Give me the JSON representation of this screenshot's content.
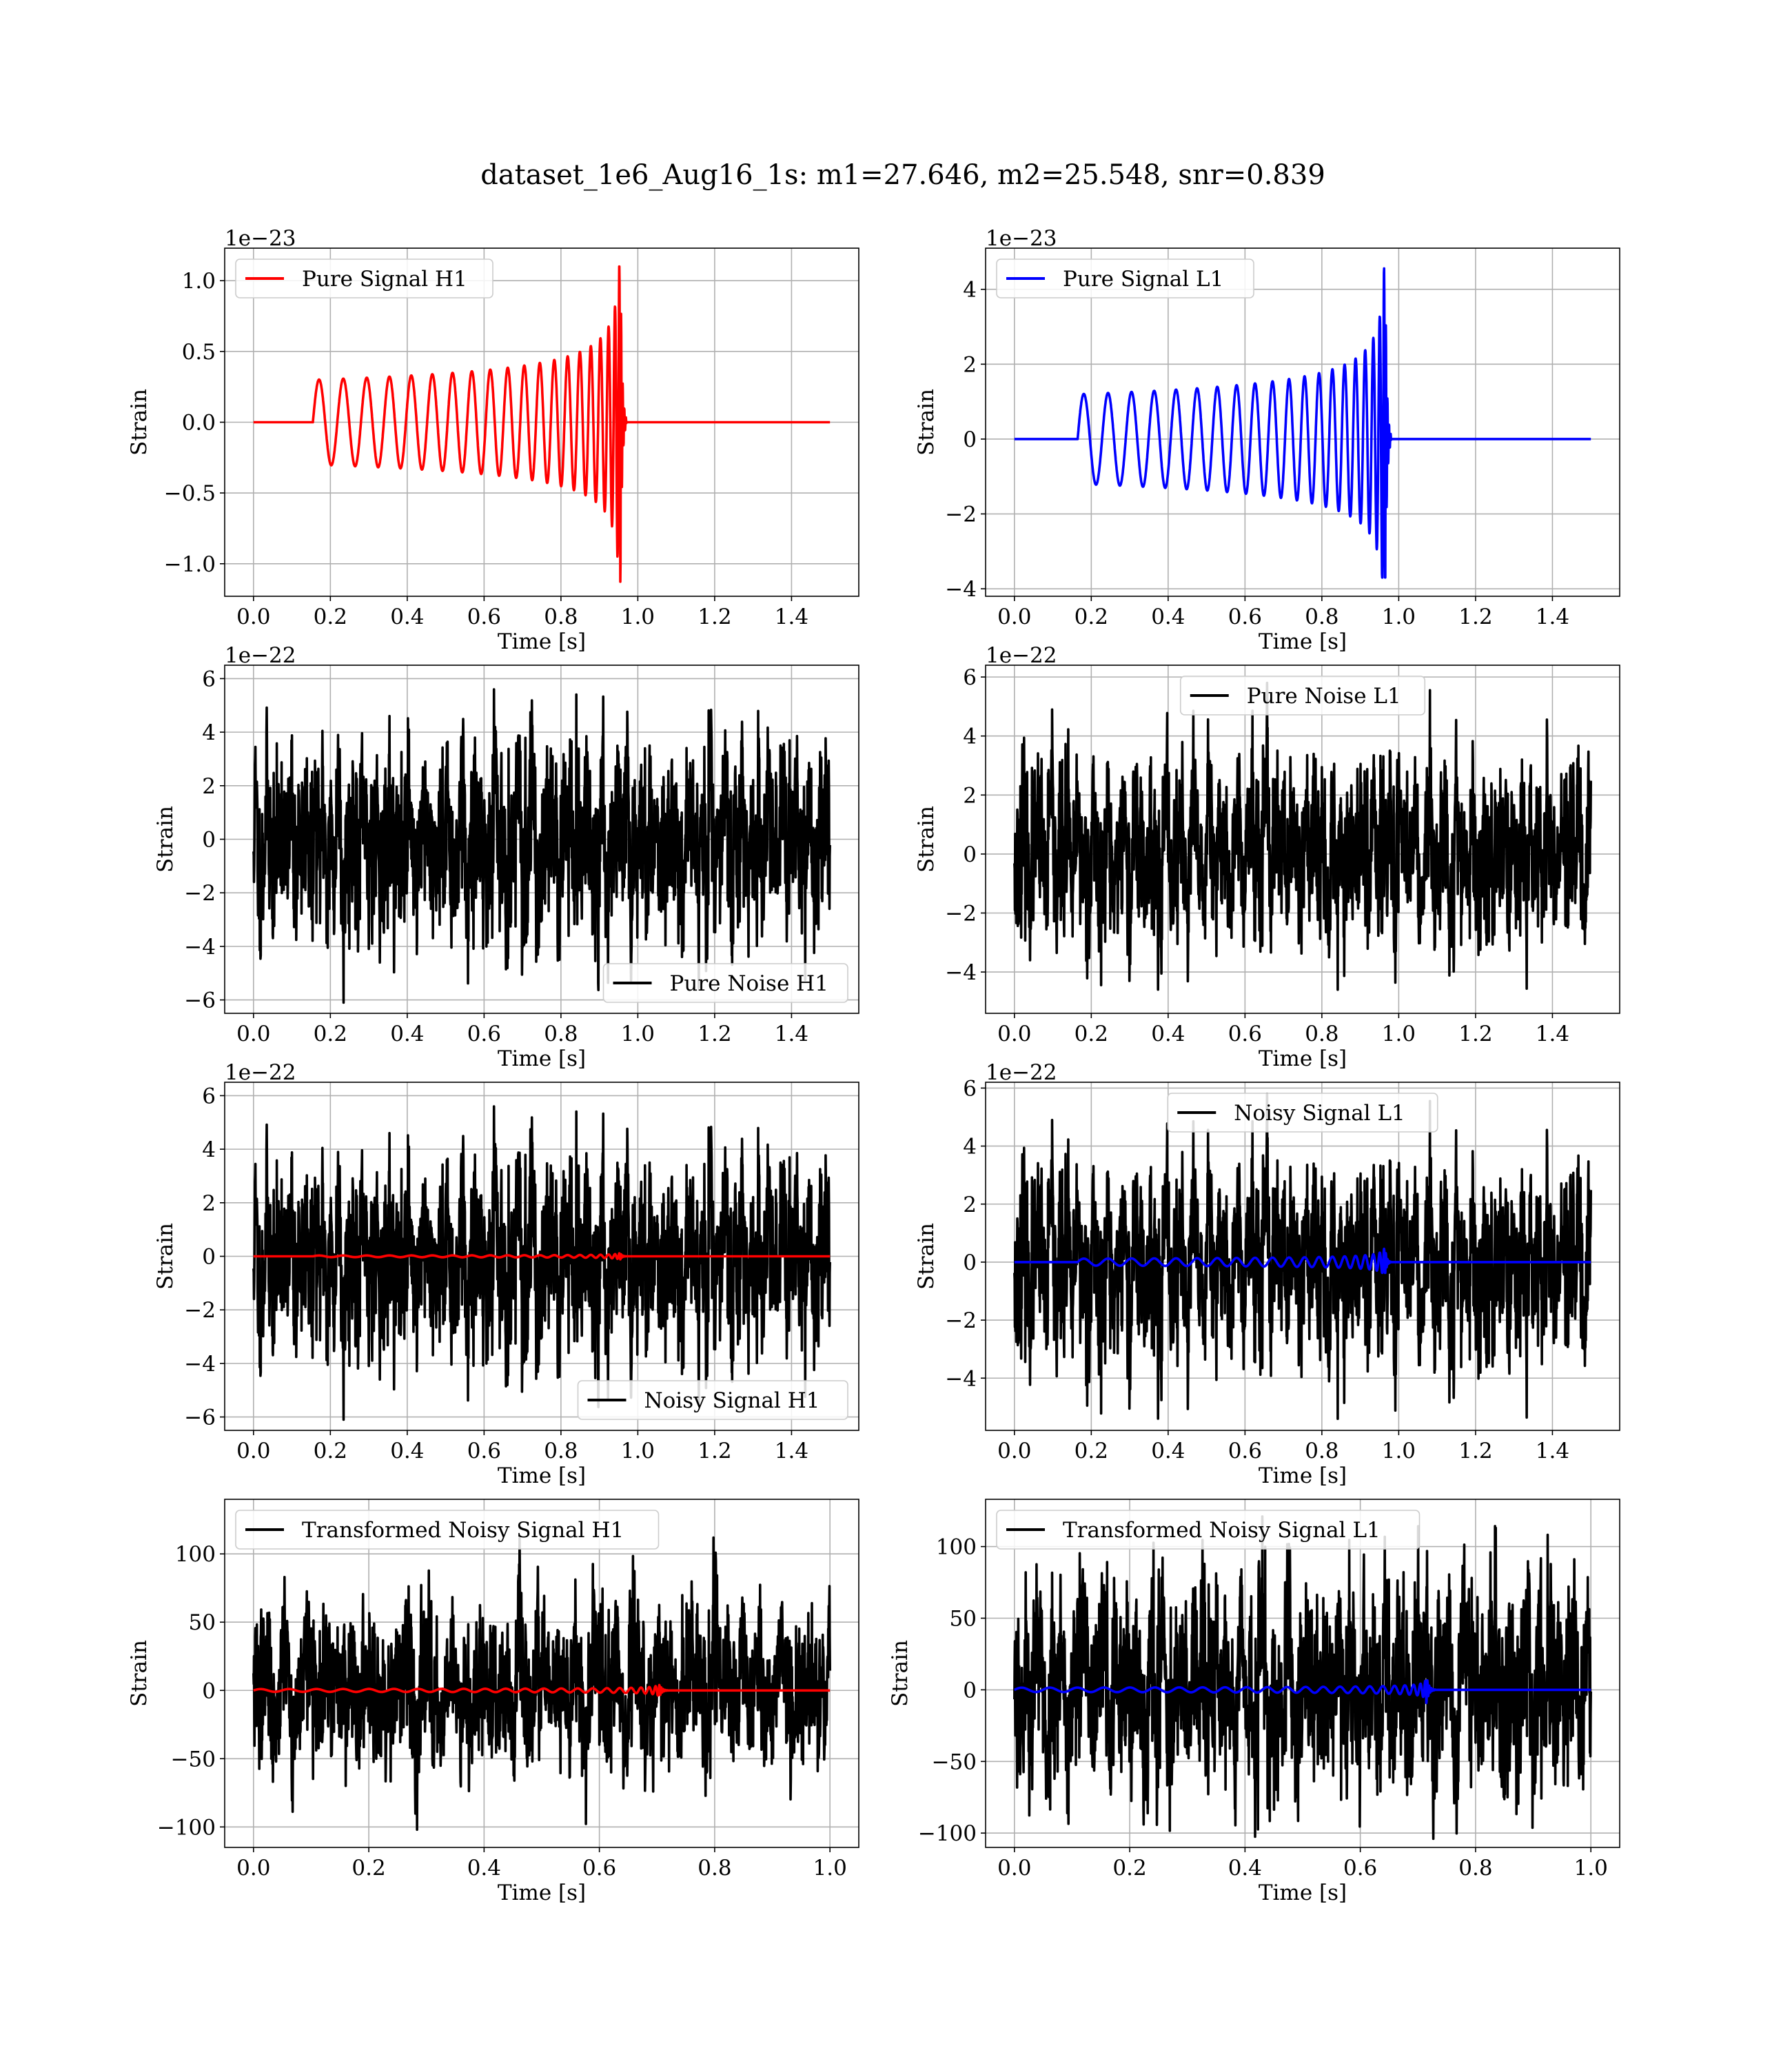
{
  "figure": {
    "title": "dataset_1e6_Aug16_1s: m1=27.646, m2=25.548, snr=0.839"
  },
  "chart_data": [
    {
      "id": "pure-signal-h1",
      "type": "line",
      "ylabel": "Strain",
      "xlabel": "Time [s]",
      "offset_text": "1e−23",
      "xlim": [
        -0.075,
        1.575
      ],
      "ylim": [
        -1.23,
        1.23
      ],
      "xticks": [
        0.0,
        0.2,
        0.4,
        0.6,
        0.8,
        1.0,
        1.2,
        1.4
      ],
      "xtick_labels": [
        "0.0",
        "0.2",
        "0.4",
        "0.6",
        "0.8",
        "1.0",
        "1.2",
        "1.4"
      ],
      "yticks": [
        -1.0,
        -0.5,
        0.0,
        0.5,
        1.0
      ],
      "ytick_labels": [
        "−1.0",
        "−0.5",
        "0.0",
        "0.5",
        "1.0"
      ],
      "grid": true,
      "legend_position": "upper left",
      "series": [
        {
          "name": "Pure Signal H1",
          "color": "#ff0000",
          "kind": "chirp",
          "x_range": [
            0.0,
            1.5
          ],
          "onset": 0.155,
          "merger": 0.955,
          "amp_start": 0.3,
          "amp_peak": 1.1,
          "amp_trough": -1.16,
          "f_start": 15.5
        }
      ]
    },
    {
      "id": "pure-signal-l1",
      "type": "line",
      "ylabel": "Strain",
      "xlabel": "Time [s]",
      "offset_text": "1e−23",
      "xlim": [
        -0.075,
        1.575
      ],
      "ylim": [
        -4.2,
        5.1
      ],
      "xticks": [
        0.0,
        0.2,
        0.4,
        0.6,
        0.8,
        1.0,
        1.2,
        1.4
      ],
      "xtick_labels": [
        "0.0",
        "0.2",
        "0.4",
        "0.6",
        "0.8",
        "1.0",
        "1.2",
        "1.4"
      ],
      "yticks": [
        -4,
        -2,
        0,
        2,
        4
      ],
      "ytick_labels": [
        "−4",
        "−2",
        "0",
        "2",
        "4"
      ],
      "grid": true,
      "legend_position": "upper left",
      "series": [
        {
          "name": "Pure Signal L1",
          "color": "#0000ff",
          "kind": "chirp",
          "x_range": [
            0.0,
            1.5
          ],
          "onset": 0.165,
          "merger": 0.965,
          "amp_start": 1.2,
          "amp_peak": 4.6,
          "amp_trough": -3.7,
          "f_start": 15.5
        }
      ]
    },
    {
      "id": "pure-noise-h1",
      "type": "line",
      "ylabel": "Strain",
      "xlabel": "Time [s]",
      "offset_text": "1e−22",
      "xlim": [
        -0.075,
        1.575
      ],
      "ylim": [
        -6.5,
        6.5
      ],
      "xticks": [
        0.0,
        0.2,
        0.4,
        0.6,
        0.8,
        1.0,
        1.2,
        1.4
      ],
      "xtick_labels": [
        "0.0",
        "0.2",
        "0.4",
        "0.6",
        "0.8",
        "1.0",
        "1.2",
        "1.4"
      ],
      "yticks": [
        -6,
        -4,
        -2,
        0,
        2,
        4,
        6
      ],
      "ytick_labels": [
        "−6",
        "−4",
        "−2",
        "0",
        "2",
        "4",
        "6"
      ],
      "grid": true,
      "legend_position": "lower right",
      "series": [
        {
          "name": "Pure Noise H1",
          "color": "#000000",
          "kind": "noise",
          "x_range": [
            0.0,
            1.5
          ],
          "amp": 2.0,
          "y_max": 5.6,
          "y_min": -6.1,
          "seed": 11
        }
      ]
    },
    {
      "id": "pure-noise-l1",
      "type": "line",
      "ylabel": "Strain",
      "xlabel": "Time [s]",
      "offset_text": "1e−22",
      "xlim": [
        -0.075,
        1.575
      ],
      "ylim": [
        -5.4,
        6.4
      ],
      "xticks": [
        0.0,
        0.2,
        0.4,
        0.6,
        0.8,
        1.0,
        1.2,
        1.4
      ],
      "xtick_labels": [
        "0.0",
        "0.2",
        "0.4",
        "0.6",
        "0.8",
        "1.0",
        "1.2",
        "1.4"
      ],
      "yticks": [
        -4,
        -2,
        0,
        2,
        4,
        6
      ],
      "ytick_labels": [
        "−4",
        "−2",
        "0",
        "2",
        "4",
        "6"
      ],
      "grid": true,
      "legend_position": "upper center",
      "series": [
        {
          "name": "Pure Noise L1",
          "color": "#000000",
          "kind": "noise",
          "x_range": [
            0.0,
            1.5
          ],
          "amp": 1.9,
          "y_max": 5.8,
          "y_min": -4.6,
          "seed": 23
        }
      ]
    },
    {
      "id": "noisy-signal-h1",
      "type": "line",
      "ylabel": "Strain",
      "xlabel": "Time [s]",
      "offset_text": "1e−22",
      "xlim": [
        -0.075,
        1.575
      ],
      "ylim": [
        -6.5,
        6.5
      ],
      "xticks": [
        0.0,
        0.2,
        0.4,
        0.6,
        0.8,
        1.0,
        1.2,
        1.4
      ],
      "xtick_labels": [
        "0.0",
        "0.2",
        "0.4",
        "0.6",
        "0.8",
        "1.0",
        "1.2",
        "1.4"
      ],
      "yticks": [
        -6,
        -4,
        -2,
        0,
        2,
        4,
        6
      ],
      "ytick_labels": [
        "−6",
        "−4",
        "−2",
        "0",
        "2",
        "4",
        "6"
      ],
      "grid": true,
      "legend_position": "lower right",
      "series": [
        {
          "name": "Noisy Signal H1",
          "color": "#000000",
          "kind": "noise",
          "x_range": [
            0.0,
            1.5
          ],
          "amp": 2.0,
          "y_max": 5.6,
          "y_min": -6.1,
          "seed": 11
        },
        {
          "name": "",
          "color": "#ff0000",
          "kind": "chirp",
          "x_range": [
            0.0,
            1.5
          ],
          "onset": 0.155,
          "merger": 0.955,
          "amp_start": 0.03,
          "amp_peak": 0.11,
          "amp_trough": -0.116,
          "f_start": 15.5
        }
      ]
    },
    {
      "id": "noisy-signal-l1",
      "type": "line",
      "ylabel": "Strain",
      "xlabel": "Time [s]",
      "offset_text": "1e−22",
      "xlim": [
        -0.075,
        1.575
      ],
      "ylim": [
        -5.8,
        6.2
      ],
      "xticks": [
        0.0,
        0.2,
        0.4,
        0.6,
        0.8,
        1.0,
        1.2,
        1.4
      ],
      "xtick_labels": [
        "0.0",
        "0.2",
        "0.4",
        "0.6",
        "0.8",
        "1.0",
        "1.2",
        "1.4"
      ],
      "yticks": [
        -4,
        -2,
        0,
        2,
        4,
        6
      ],
      "ytick_labels": [
        "−4",
        "−2",
        "0",
        "2",
        "4",
        "6"
      ],
      "grid": true,
      "legend_position": "upper center",
      "series": [
        {
          "name": "Noisy Signal L1",
          "color": "#000000",
          "kind": "noise",
          "x_range": [
            0.0,
            1.5
          ],
          "amp": 1.9,
          "y_max": 5.8,
          "y_min": -5.4,
          "seed": 23
        },
        {
          "name": "",
          "color": "#0000ff",
          "kind": "chirp",
          "x_range": [
            0.0,
            1.5
          ],
          "onset": 0.165,
          "merger": 0.965,
          "amp_start": 0.12,
          "amp_peak": 0.46,
          "amp_trough": -0.37,
          "f_start": 15.5
        }
      ]
    },
    {
      "id": "transformed-noisy-signal-h1",
      "type": "line",
      "ylabel": "Strain",
      "xlabel": "Time [s]",
      "offset_text": "",
      "xlim": [
        -0.05,
        1.05
      ],
      "ylim": [
        -115,
        140
      ],
      "xticks": [
        0.0,
        0.2,
        0.4,
        0.6,
        0.8,
        1.0
      ],
      "xtick_labels": [
        "0.0",
        "0.2",
        "0.4",
        "0.6",
        "0.8",
        "1.0"
      ],
      "yticks": [
        -100,
        -50,
        0,
        50,
        100
      ],
      "ytick_labels": [
        "−100",
        "−50",
        "0",
        "50",
        "100"
      ],
      "grid": true,
      "legend_position": "upper left",
      "series": [
        {
          "name": "Transformed Noisy Signal H1",
          "color": "#000000",
          "kind": "noise",
          "x_range": [
            0.0,
            1.0
          ],
          "amp": 30,
          "y_max": 112,
          "y_min": -102,
          "seed": 37
        },
        {
          "name": "",
          "color": "#ff0000",
          "kind": "chirp",
          "x_range": [
            0.0,
            1.0
          ],
          "onset": 0.0,
          "merger": 0.705,
          "amp_start": 1.0,
          "amp_peak": 4.0,
          "amp_trough": -4.0,
          "f_start": 20
        }
      ]
    },
    {
      "id": "transformed-noisy-signal-l1",
      "type": "line",
      "ylabel": "Strain",
      "xlabel": "Time [s]",
      "offset_text": "",
      "xlim": [
        -0.05,
        1.05
      ],
      "ylim": [
        -110,
        133
      ],
      "xticks": [
        0.0,
        0.2,
        0.4,
        0.6,
        0.8,
        1.0
      ],
      "xtick_labels": [
        "0.0",
        "0.2",
        "0.4",
        "0.6",
        "0.8",
        "1.0"
      ],
      "yticks": [
        -100,
        -50,
        0,
        50,
        100
      ],
      "ytick_labels": [
        "−100",
        "−50",
        "0",
        "50",
        "100"
      ],
      "grid": true,
      "legend_position": "upper left",
      "series": [
        {
          "name": "Transformed Noisy Signal L1",
          "color": "#000000",
          "kind": "noise",
          "x_range": [
            0.0,
            1.0
          ],
          "amp": 28,
          "y_max": 121,
          "y_min": -104,
          "seed": 53
        },
        {
          "name": "",
          "color": "#0000ff",
          "kind": "chirp",
          "x_range": [
            0.0,
            1.0
          ],
          "onset": 0.0,
          "merger": 0.715,
          "amp_start": 1.5,
          "amp_peak": 13,
          "amp_trough": -12,
          "f_start": 20
        }
      ]
    }
  ]
}
